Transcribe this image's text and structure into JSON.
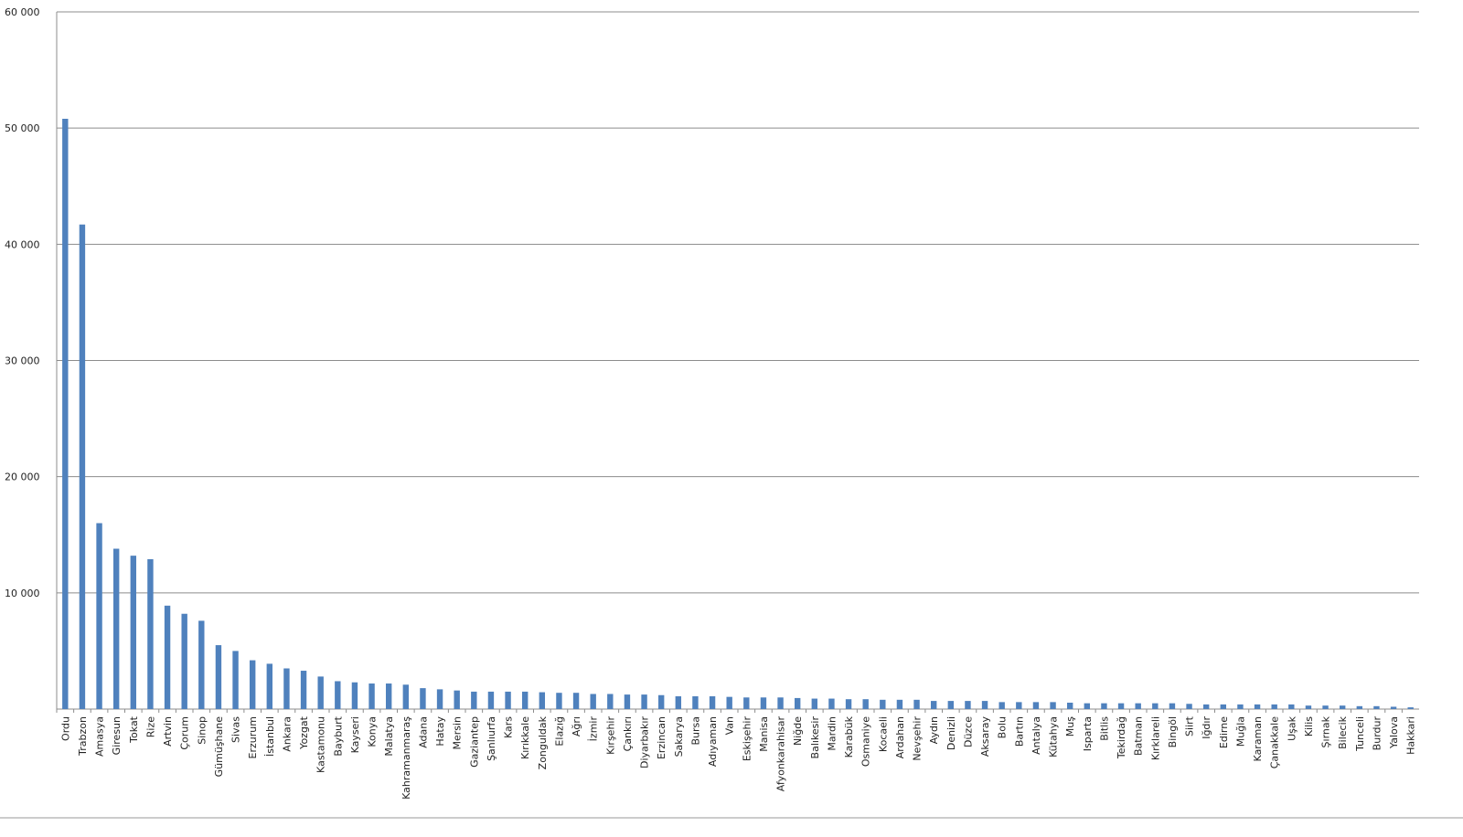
{
  "chart_data": {
    "type": "bar",
    "categories": [
      "Ordu",
      "Trabzon",
      "Amasya",
      "Giresun",
      "Tokat",
      "Rize",
      "Artvin",
      "Çorum",
      "Sinop",
      "Gümüşhane",
      "Sivas",
      "Erzurum",
      "İstanbul",
      "Ankara",
      "Yozgat",
      "Kastamonu",
      "Bayburt",
      "Kayseri",
      "Konya",
      "Malatya",
      "Kahramanmaraş",
      "Adana",
      "Hatay",
      "Mersin",
      "Gaziantep",
      "Şanlıurfa",
      "Kars",
      "Kırıkkale",
      "Zonguldak",
      "Elazığ",
      "Ağrı",
      "İzmir",
      "Kırşehir",
      "Çankırı",
      "Diyarbakır",
      "Erzincan",
      "Sakarya",
      "Bursa",
      "Adıyaman",
      "Van",
      "Eskişehir",
      "Manisa",
      "Afyonkarahisar",
      "Niğde",
      "Balıkesir",
      "Mardin",
      "Karabük",
      "Osmaniye",
      "Kocaeli",
      "Ardahan",
      "Nevşehir",
      "Aydın",
      "Denizli",
      "Düzce",
      "Aksaray",
      "Bolu",
      "Bartın",
      "Antalya",
      "Kütahya",
      "Muş",
      "Isparta",
      "Bitlis",
      "Tekirdağ",
      "Batman",
      "Kırklareli",
      "Bingöl",
      "Siirt",
      "Iğdır",
      "Edirne",
      "Muğla",
      "Karaman",
      "Çanakkale",
      "Uşak",
      "Kilis",
      "Şırnak",
      "Bilecik",
      "Tunceli",
      "Burdur",
      "Yalova",
      "Hakkari"
    ],
    "values": [
      50800,
      41700,
      16000,
      13800,
      13200,
      12900,
      8900,
      8200,
      7600,
      5500,
      5000,
      4200,
      3900,
      3500,
      3300,
      2800,
      2400,
      2300,
      2200,
      2200,
      2100,
      1800,
      1700,
      1600,
      1500,
      1500,
      1500,
      1500,
      1450,
      1400,
      1400,
      1300,
      1300,
      1250,
      1250,
      1200,
      1100,
      1100,
      1100,
      1050,
      1000,
      1000,
      1000,
      950,
      900,
      900,
      850,
      850,
      800,
      800,
      800,
      700,
      700,
      700,
      700,
      600,
      600,
      600,
      600,
      550,
      500,
      500,
      500,
      500,
      500,
      500,
      450,
      400,
      400,
      400,
      400,
      400,
      400,
      300,
      300,
      300,
      250,
      250,
      200,
      150
    ],
    "color": "#4f81bd",
    "ylim": [
      0,
      60000
    ],
    "yticks": [
      {
        "value": 10000,
        "label": "10 000"
      },
      {
        "value": 20000,
        "label": "20 000"
      },
      {
        "value": 30000,
        "label": "30 000"
      },
      {
        "value": 40000,
        "label": "40 000"
      },
      {
        "value": 50000,
        "label": "50 000"
      },
      {
        "value": 60000,
        "label": "60 000"
      }
    ],
    "grid": true
  }
}
